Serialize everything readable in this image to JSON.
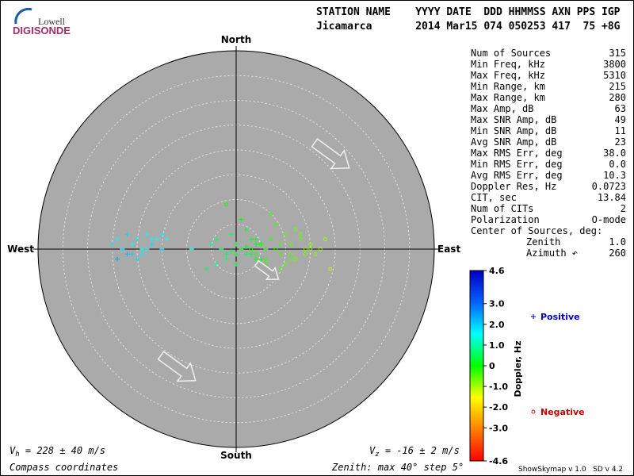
{
  "logo": {
    "top": "Lowell",
    "bottom": "DIGISONDE"
  },
  "header": {
    "line1": "STATION NAME    YYYY DATE  DDD HHMMSS AXN PPS IGP",
    "line2": "Jicamarca       2014 Mar15 074 050253 417  75 +8G"
  },
  "stats": {
    "rows": [
      [
        "Num of Sources",
        "315"
      ],
      [
        "Min Freq, kHz",
        "3800"
      ],
      [
        "Max Freq, kHz",
        "5310"
      ],
      [
        "Min Range, km",
        "215"
      ],
      [
        "Max Range, km",
        "280"
      ],
      [
        "Max Amp, dB",
        "63"
      ],
      [
        "Max SNR Amp, dB",
        "49"
      ],
      [
        "Min SNR Amp, dB",
        "11"
      ],
      [
        "Avg SNR Amp, dB",
        "23"
      ],
      [
        "Max RMS Err, deg",
        "38.0"
      ],
      [
        "Min RMS Err, deg",
        "0.0"
      ],
      [
        "Avg RMS Err, deg",
        "10.3"
      ],
      [
        "Doppler Res, Hz",
        "0.0723"
      ],
      [
        "CIT, sec",
        "13.84"
      ],
      [
        "Num of CITs",
        "2"
      ],
      [
        "Polarization",
        "O-mode"
      ],
      [
        "Center of Sources, deg:"
      ],
      [
        "Zenith",
        "1.0"
      ],
      [
        "Azimuth ↶",
        "260"
      ]
    ]
  },
  "chart_data": {
    "type": "skymap",
    "compass": {
      "north": "North",
      "south": "South",
      "west": "West",
      "east": "East"
    },
    "rlim": [
      0,
      40
    ],
    "rticks": [
      5,
      10,
      15,
      20,
      25,
      30,
      35
    ],
    "clim": [
      -4.6,
      4.6
    ],
    "colormap": [
      "#ff0000",
      "#ff8000",
      "#ffff00",
      "#00ff00",
      "#00ffff",
      "#0060ff",
      "#0000c0"
    ],
    "cticks": [
      {
        "value": 4.6,
        "label": "4.6"
      },
      {
        "value": 3,
        "label": "3.0"
      },
      {
        "value": 2,
        "label": "2.0"
      },
      {
        "value": 1,
        "label": "1.0"
      },
      0,
      {
        "value": -1,
        "label": "-1.0"
      },
      {
        "value": -2,
        "label": "-2.0"
      },
      {
        "value": -3,
        "label": "-3.0"
      },
      {
        "value": -4.6,
        "label": "-4.6"
      }
    ],
    "clabel": "Doppler, Hz",
    "series": [
      {
        "name": "Positive",
        "marker": "plus",
        "color": "#0000cc",
        "x": [
          -25,
          -24,
          -23,
          -22,
          -21,
          -20,
          -19,
          -18,
          -17,
          -16,
          -15,
          -22,
          -20,
          -18,
          -24,
          -23,
          -21,
          -19,
          -17,
          -15,
          -14,
          -9,
          -5,
          -4,
          -3,
          -2,
          -1,
          0,
          1,
          2,
          3,
          4,
          5,
          6,
          -2,
          0,
          2,
          4,
          -4,
          1,
          3,
          5,
          -6,
          0,
          2,
          -1,
          4
        ],
        "y": [
          1,
          2,
          0,
          3,
          -1,
          2,
          0,
          3,
          1,
          2,
          3,
          -1,
          -2,
          0,
          -2,
          0,
          1,
          -1,
          2,
          0,
          2,
          0,
          1,
          2,
          0,
          -1,
          3,
          1,
          0,
          -1,
          2,
          -2,
          1,
          0,
          -2,
          -3,
          4,
          2,
          -3,
          6,
          -1,
          -2,
          -4,
          -1,
          0.5,
          -0.5,
          1
        ],
        "doppler": [
          1.8,
          1.6,
          1.5,
          1.9,
          2.0,
          1.7,
          1.4,
          1.6,
          1.8,
          1.5,
          1.7,
          2.2,
          1.9,
          1.6,
          2.4,
          1.8,
          1.5,
          1.7,
          1.6,
          1.9,
          1.5,
          1.3,
          0.8,
          0.6,
          0.5,
          0.4,
          0.7,
          0.3,
          0.2,
          0.5,
          0.3,
          0.1,
          0.2,
          0.0,
          0.6,
          0.4,
          0.3,
          0.2,
          0.9,
          0.1,
          0.3,
          0.2,
          0.7,
          0.4,
          0.3,
          0.5,
          0.1
        ]
      },
      {
        "name": "Negative",
        "marker": "circle",
        "color": "#cc0000",
        "x": [
          3,
          4,
          5,
          6,
          7,
          8,
          9,
          10,
          11,
          12,
          13,
          14,
          15,
          16,
          17,
          18,
          19,
          8,
          10,
          12,
          14,
          6,
          9,
          11,
          13,
          15,
          7,
          9,
          11,
          -2
        ],
        "y": [
          0,
          -1,
          1,
          -2,
          2,
          0,
          -1,
          3,
          1,
          -2,
          2,
          0,
          1,
          -1,
          0,
          2,
          -4,
          5,
          -3,
          4,
          -1,
          -3,
          1,
          -2,
          3,
          0,
          7,
          -4,
          -1,
          9
        ],
        "doppler": [
          -0.1,
          -0.2,
          -0.2,
          -0.3,
          -0.3,
          -0.4,
          -0.4,
          -0.5,
          -0.5,
          -0.6,
          -0.6,
          -0.7,
          -0.8,
          -0.8,
          -0.9,
          -1.0,
          -1.1,
          -0.4,
          -0.5,
          -0.6,
          -0.7,
          -0.3,
          -0.4,
          -0.5,
          -0.6,
          -0.8,
          -0.3,
          -0.4,
          -0.5,
          -0.1
        ]
      }
    ],
    "vh": {
      "symbol": "V",
      "sub": "h",
      "text": " = 228 ± 40 m/s"
    },
    "vz": {
      "symbol": "V",
      "sub": "z",
      "text": " = -16 ± 2 m/s"
    },
    "coords_note": "Compass coordinates",
    "zenith_note": "Zenith: max 40°  step 5°",
    "version": "ShowSkymap v 1.0   SD v 4.2"
  }
}
